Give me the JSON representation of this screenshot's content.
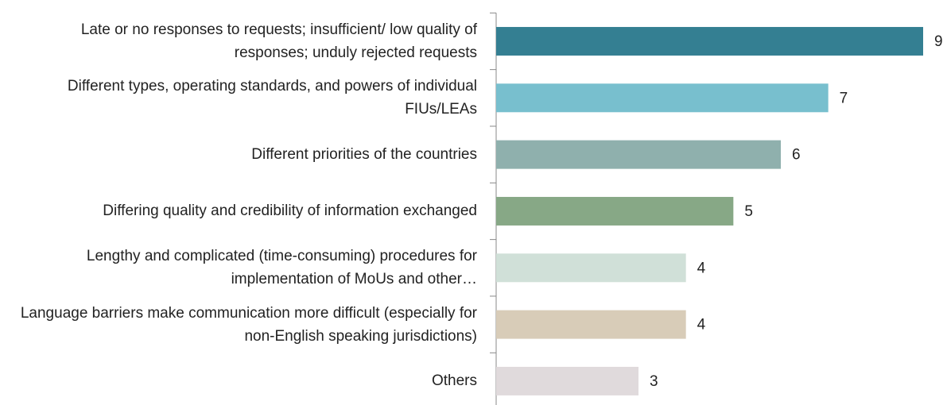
{
  "chart_data": {
    "type": "bar",
    "orientation": "horizontal",
    "categories": [
      "Late or no responses to requests; insufficient/ low quality of responses; unduly rejected requests",
      "Different types, operating standards, and powers of individual FIUs/LEAs",
      "Different priorities of the countries",
      "Differing quality and credibility of information exchanged",
      "Lengthy and complicated (time-consuming) procedures for implementation of MoUs and other…",
      "Language barriers make communication more difficult (especially for non-English speaking jurisdictions)",
      "Others"
    ],
    "values": [
      9,
      7,
      6,
      5,
      4,
      4,
      3
    ],
    "colors": [
      "#347f92",
      "#78bfce",
      "#8fb0ad",
      "#87a886",
      "#d0e0d8",
      "#d8ccb8",
      "#e0dadc"
    ],
    "xlim": [
      0,
      9
    ]
  }
}
